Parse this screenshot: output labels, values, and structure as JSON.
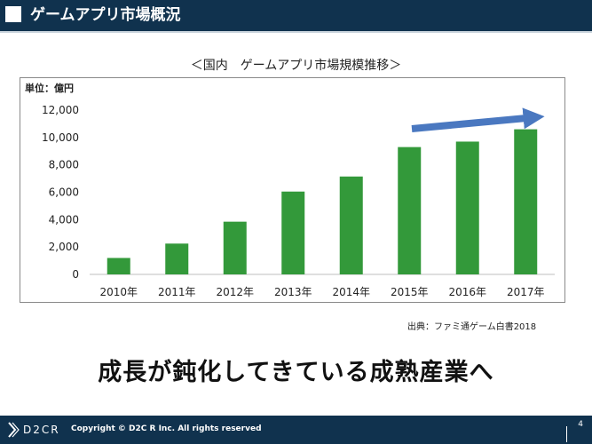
{
  "header": {
    "title": "ゲームアプリ市場概況"
  },
  "chart_data": {
    "type": "bar",
    "title": "＜国内　ゲームアプリ市場規模推移＞",
    "unit_label": "単位：億円",
    "categories": [
      "2010年",
      "2011年",
      "2012年",
      "2013年",
      "2014年",
      "2015年",
      "2016年",
      "2017年"
    ],
    "values": [
      1200,
      2250,
      3850,
      6050,
      7150,
      9300,
      9700,
      10600
    ],
    "ylim": [
      0,
      12000
    ],
    "yticks": [
      "0",
      "2,000",
      "4,000",
      "6,000",
      "8,000",
      "10,000",
      "12,000"
    ],
    "ytick_values": [
      0,
      2000,
      4000,
      6000,
      8000,
      10000,
      12000
    ],
    "grid": false,
    "legend": "none",
    "colors": {
      "bar": "#33993a",
      "arrow": "#4a78c0",
      "axis": "#bfbfbf"
    }
  },
  "source": "出典：ファミ通ゲーム白書2018",
  "message": "成長が鈍化してきている成熟産業へ",
  "footer": {
    "logo_text": "D2CR",
    "copyright": "Copyright © D2C R Inc. All rights reserved",
    "page_number": "4"
  },
  "colors": {
    "navy": "#10324e"
  }
}
